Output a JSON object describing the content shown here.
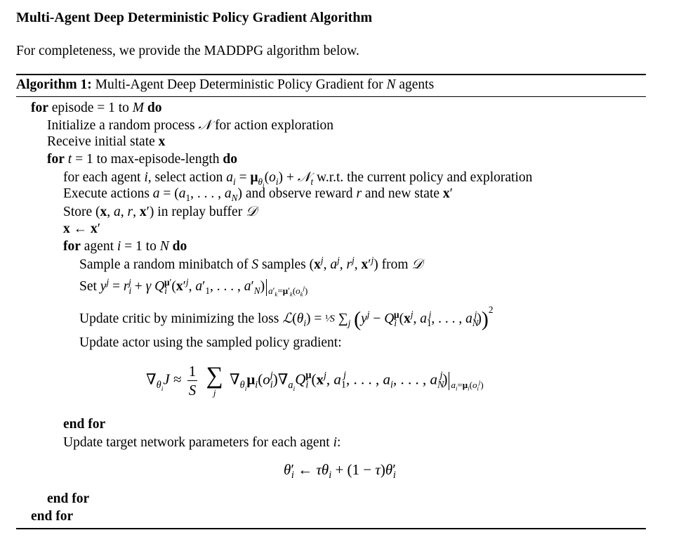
{
  "section_title": "Multi-Agent Deep Deterministic Policy Gradient Algorithm",
  "intro_text": "For completeness, we provide the MADDPG algorithm below.",
  "algorithm": {
    "caption_label": "Algorithm 1:",
    "caption_text": "Multi-Agent Deep Deterministic Policy Gradient for",
    "caption_var": "N",
    "caption_tail": "agents"
  },
  "keywords": {
    "for": "for",
    "do": "do",
    "end_for": "end for"
  },
  "lines": {
    "l1_text": "episode = 1 to",
    "l1_var": "M",
    "l2_text": "Initialize a random process",
    "l2_tail": "for action exploration",
    "l3_text": "Receive initial state",
    "l4_mid": "= 1 to max-episode-length",
    "l5_a": "for each agent",
    "l5_b": ", select action",
    "l5_c": "w.r.t. the current policy and exploration",
    "l6_a": "Execute actions",
    "l6_b": "and observe reward",
    "l6_c": "and new state",
    "l7_a": "Store",
    "l7_b": "in replay buffer",
    "l9_a": "agent",
    "l9_b": "= 1 to",
    "l10_a": "Sample a random minibatch of",
    "l10_b": "samples",
    "l10_c": "from",
    "l11_a": "Set",
    "l12_a": "Update critic by minimizing the loss",
    "l13_a": "Update actor using the sampled policy gradient:",
    "l15_a": "Update target network parameters for each agent"
  }
}
